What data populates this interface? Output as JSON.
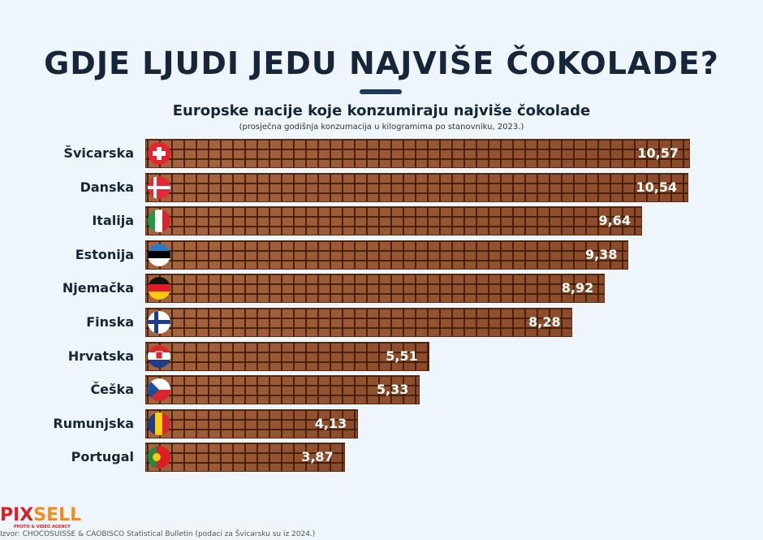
{
  "title": "GDJE LJUDI JEDU NAJVIŠE ČOKOLADE?",
  "subtitle": "Europske nacije koje konzumiraju najviše čokolade",
  "note": "(prosječna godišnja konzumacija u kilogramima po stanovniku, 2023.)",
  "logo": {
    "part1": "PIX",
    "part2": "SELL",
    "tagline": "PHOTO & VIDEO AGENCY"
  },
  "source": "Izvor: CHOCOSUISSE & CAOBISCO Statistical Bulletin (podaci za Švicarsku su iz 2024.)",
  "chart_data": {
    "type": "bar",
    "orientation": "horizontal",
    "title": "Europske nacije koje konzumiraju najviše čokolade",
    "unit": "kg po stanovniku",
    "categories": [
      "Švicarska",
      "Danska",
      "Italija",
      "Estonija",
      "Njemačka",
      "Finska",
      "Hrvatska",
      "Češka",
      "Rumunjska",
      "Portugal"
    ],
    "values": [
      10.57,
      10.54,
      9.64,
      9.38,
      8.92,
      8.28,
      5.51,
      5.33,
      4.13,
      3.87
    ],
    "labels": [
      "10,57",
      "10,54",
      "9,64",
      "9,38",
      "8,92",
      "8,28",
      "5,51",
      "5,33",
      "4,13",
      "3,87"
    ],
    "flags": [
      "switzerland",
      "denmark",
      "italy",
      "estonia",
      "germany",
      "finland",
      "croatia",
      "czechia",
      "romania",
      "portugal"
    ],
    "xlim": [
      0,
      10.57
    ]
  }
}
